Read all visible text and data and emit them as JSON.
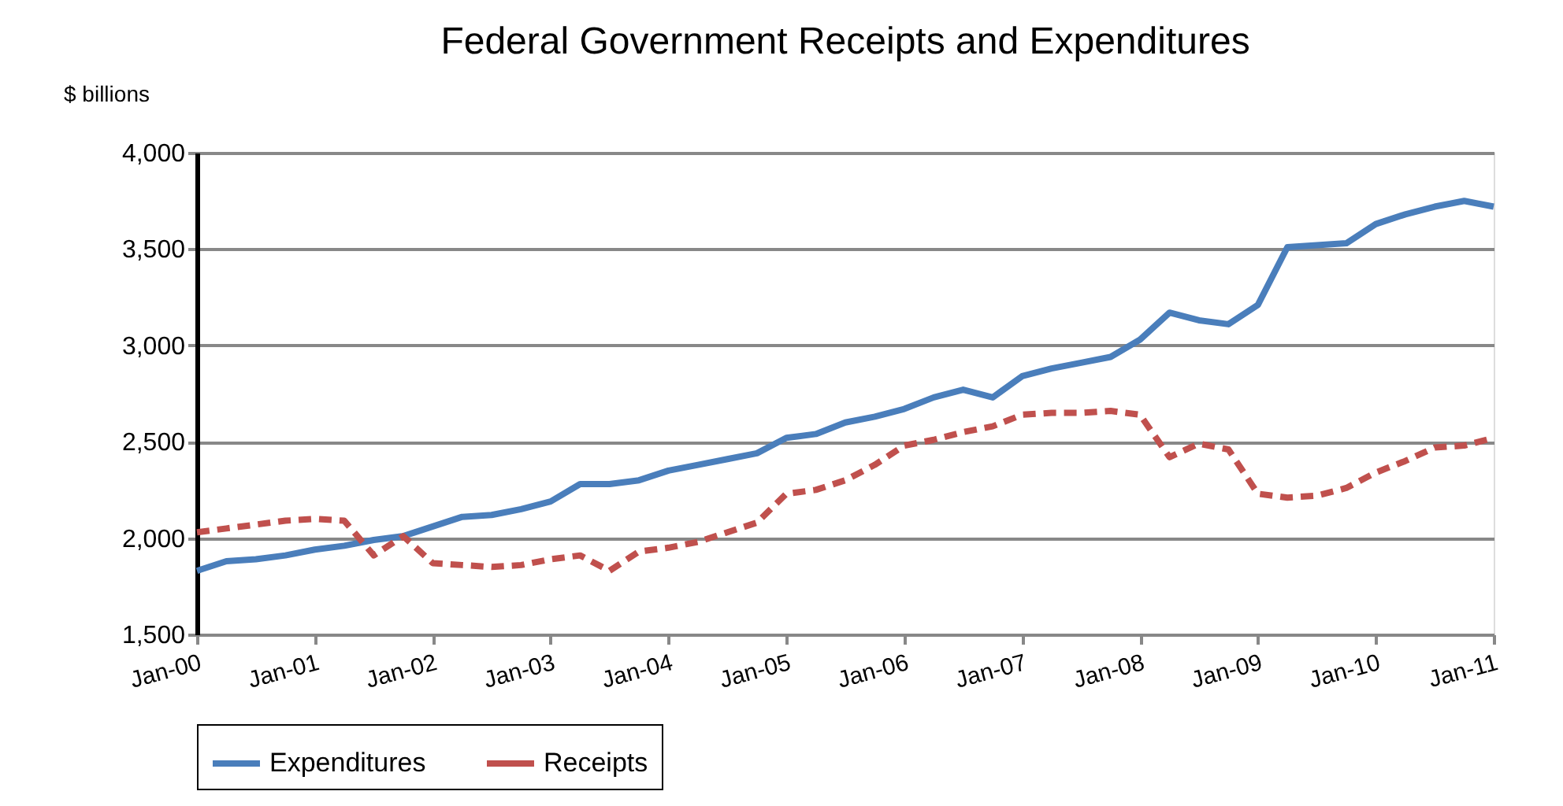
{
  "chart_data": {
    "type": "line",
    "title": "Federal Government Receipts and Expenditures",
    "ylabel": "$ billions",
    "categories": [
      "Jan-00",
      null,
      null,
      null,
      "Jan-01",
      null,
      null,
      null,
      "Jan-02",
      null,
      null,
      null,
      "Jan-03",
      null,
      null,
      null,
      "Jan-04",
      null,
      null,
      null,
      "Jan-05",
      null,
      null,
      null,
      "Jan-06",
      null,
      null,
      null,
      "Jan-07",
      null,
      null,
      null,
      "Jan-08",
      null,
      null,
      null,
      "Jan-09",
      null,
      null,
      null,
      "Jan-10",
      null,
      null,
      null,
      "Jan-11"
    ],
    "series": [
      {
        "name": "Expenditures",
        "color": "#4a7ebb",
        "line_style": "solid",
        "values": [
          1830,
          1880,
          1890,
          1910,
          1940,
          1960,
          1990,
          2010,
          2060,
          2110,
          2120,
          2150,
          2190,
          2280,
          2280,
          2300,
          2350,
          2380,
          2410,
          2440,
          2520,
          2540,
          2600,
          2630,
          2670,
          2730,
          2770,
          2730,
          2840,
          2880,
          2910,
          2940,
          3030,
          3170,
          3130,
          3110,
          3210,
          3510,
          3520,
          3530,
          3630,
          3680,
          3720,
          3750,
          3720
        ]
      },
      {
        "name": "Receipts",
        "color": "#c0504d",
        "line_style": "dashed",
        "values": [
          2030,
          2050,
          2070,
          2090,
          2100,
          2090,
          1910,
          2010,
          1870,
          1860,
          1850,
          1860,
          1890,
          1910,
          1830,
          1930,
          1950,
          1980,
          2030,
          2080,
          2230,
          2250,
          2300,
          2380,
          2480,
          2510,
          2550,
          2580,
          2640,
          2650,
          2650,
          2660,
          2640,
          2420,
          2490,
          2460,
          2230,
          2210,
          2220,
          2260,
          2340,
          2400,
          2470,
          2480,
          2520
        ]
      }
    ],
    "ylim": [
      1500,
      4000
    ],
    "yticks": [
      {
        "value": 1500,
        "label": "1,500"
      },
      {
        "value": 2000,
        "label": "2,000"
      },
      {
        "value": 2500,
        "label": "2,500"
      },
      {
        "value": 3000,
        "label": "3,000"
      },
      {
        "value": 3500,
        "label": "3,500"
      },
      {
        "value": 4000,
        "label": "4,000"
      }
    ],
    "grid": "y",
    "legend": "bottom",
    "marker": "none"
  }
}
